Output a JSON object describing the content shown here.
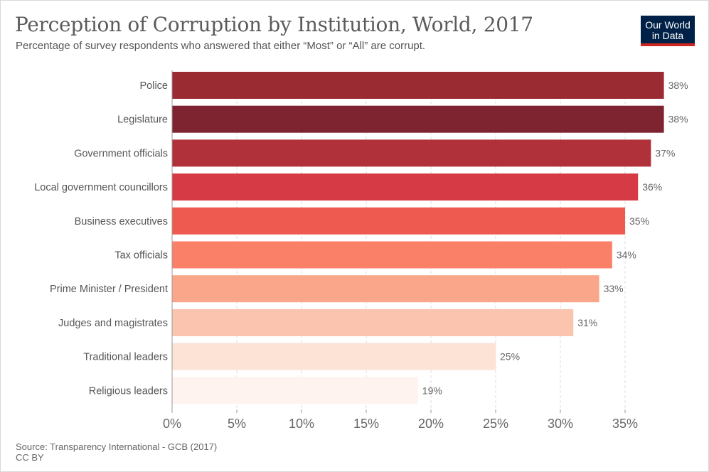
{
  "header": {
    "title": "Perception of Corruption by Institution, World, 2017",
    "subtitle": "Percentage of survey respondents who answered that either “Most” or “All” are corrupt."
  },
  "logo": {
    "line1": "Our World",
    "line2": "in Data"
  },
  "footer": {
    "source": "Source: Transparency International - GCB (2017)",
    "license": "CC BY"
  },
  "chart_data": {
    "type": "bar",
    "orientation": "horizontal",
    "categories": [
      "Police",
      "Legislature",
      "Government officials",
      "Local government councillors",
      "Business executives",
      "Tax officials",
      "Prime Minister / President",
      "Judges and magistrates",
      "Traditional leaders",
      "Religious leaders"
    ],
    "values": [
      38,
      38,
      37,
      36,
      35,
      34,
      33,
      31,
      25,
      19
    ],
    "value_labels": [
      "38%",
      "38%",
      "37%",
      "36%",
      "35%",
      "34%",
      "33%",
      "31%",
      "25%",
      "19%"
    ],
    "colors": [
      "#9b2b33",
      "#7e2330",
      "#b0313a",
      "#d63b45",
      "#ee5a4f",
      "#fa8068",
      "#f9a68a",
      "#fac4ae",
      "#fde2d6",
      "#fef3ee"
    ],
    "xlim": [
      0,
      38
    ],
    "xticks": [
      0,
      5,
      10,
      15,
      20,
      25,
      30,
      35
    ],
    "xtick_labels": [
      "0%",
      "5%",
      "10%",
      "15%",
      "20%",
      "25%",
      "30%",
      "35%"
    ],
    "grid": "vertical-dashed",
    "legend": "none"
  }
}
